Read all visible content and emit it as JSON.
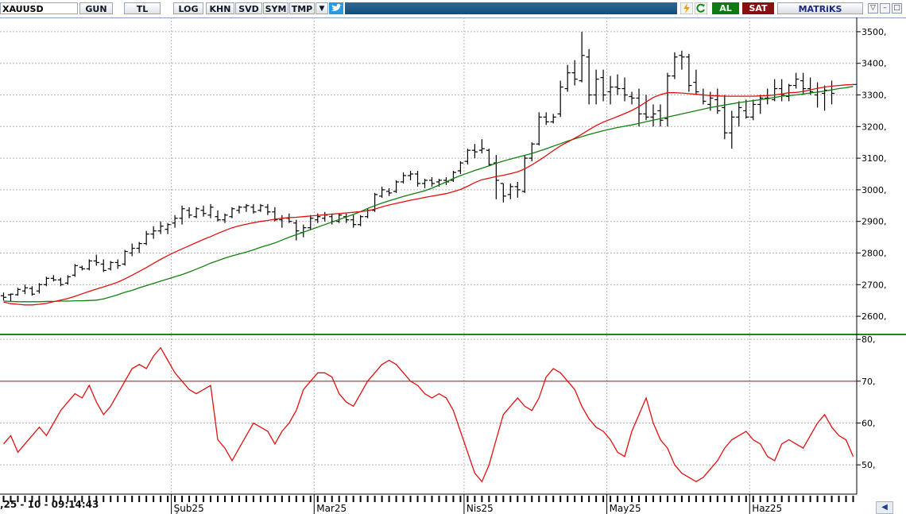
{
  "toolbar": {
    "symbol": "XAUUSD",
    "buttons": [
      {
        "label": "GUN"
      },
      {
        "label": "TL"
      },
      {
        "label": "LOG"
      },
      {
        "label": "KHN"
      },
      {
        "label": "SVD"
      },
      {
        "label": "SYM"
      },
      {
        "label": "TMP"
      }
    ],
    "buy_label": "AL",
    "sell_label": "SAT",
    "brand": "MATRiKS"
  },
  "footer": {
    "timestamp": ",25 - 10 - 09:14:43"
  },
  "colors": {
    "bars": "#000000",
    "ma_short": "#e01010",
    "ma_long": "#108010",
    "rsi": "#e01010",
    "rsi_ref_line": "#901818",
    "grid": "#b4b4b4",
    "last_segment": "#1a2a9a"
  },
  "chart_data": [
    {
      "type": "ohlc",
      "yticks": [
        "3500,",
        "3400,",
        "3300,",
        "3200,",
        "3100,",
        "3000,",
        "2900,",
        "2800,",
        "2700,",
        "2600,"
      ],
      "ytick_values": [
        3500,
        3400,
        3300,
        3200,
        3100,
        3000,
        2900,
        2800,
        2700,
        2600
      ],
      "ylim": [
        2550,
        3545
      ],
      "grid": true,
      "x_month_labels": [
        "Şub25",
        "Mar25",
        "Nis25",
        "May25",
        "Haz25"
      ],
      "x_month_index": [
        24,
        44,
        65,
        85,
        105
      ],
      "n_bars": 120,
      "bars": [
        [
          2665,
          2675,
          2650,
          2660
        ],
        [
          2668,
          2672,
          2648,
          2670
        ],
        [
          2668,
          2690,
          2665,
          2685
        ],
        [
          2680,
          2700,
          2670,
          2690
        ],
        [
          2688,
          2695,
          2665,
          2670
        ],
        [
          2680,
          2705,
          2672,
          2700
        ],
        [
          2700,
          2725,
          2695,
          2720
        ],
        [
          2720,
          2730,
          2710,
          2715
        ],
        [
          2715,
          2722,
          2695,
          2700
        ],
        [
          2705,
          2730,
          2700,
          2725
        ],
        [
          2730,
          2765,
          2725,
          2760
        ],
        [
          2755,
          2760,
          2745,
          2750
        ],
        [
          2750,
          2780,
          2745,
          2775
        ],
        [
          2775,
          2795,
          2760,
          2770
        ],
        [
          2765,
          2780,
          2740,
          2745
        ],
        [
          2750,
          2775,
          2745,
          2770
        ],
        [
          2770,
          2780,
          2750,
          2760
        ],
        [
          2765,
          2810,
          2760,
          2805
        ],
        [
          2800,
          2830,
          2790,
          2815
        ],
        [
          2815,
          2835,
          2800,
          2830
        ],
        [
          2830,
          2870,
          2825,
          2860
        ],
        [
          2860,
          2885,
          2845,
          2870
        ],
        [
          2870,
          2900,
          2860,
          2885
        ],
        [
          2875,
          2895,
          2860,
          2890
        ],
        [
          2895,
          2920,
          2880,
          2910
        ],
        [
          2910,
          2950,
          2890,
          2940
        ],
        [
          2935,
          2945,
          2910,
          2920
        ],
        [
          2915,
          2945,
          2910,
          2940
        ],
        [
          2935,
          2950,
          2915,
          2925
        ],
        [
          2920,
          2955,
          2910,
          2945
        ],
        [
          2915,
          2935,
          2900,
          2905
        ],
        [
          2905,
          2925,
          2895,
          2920
        ],
        [
          2915,
          2945,
          2910,
          2940
        ],
        [
          2935,
          2950,
          2925,
          2945
        ],
        [
          2945,
          2955,
          2930,
          2950
        ],
        [
          2945,
          2955,
          2925,
          2930
        ],
        [
          2935,
          2955,
          2930,
          2950
        ],
        [
          2945,
          2955,
          2920,
          2930
        ],
        [
          2930,
          2945,
          2900,
          2905
        ],
        [
          2905,
          2920,
          2880,
          2910
        ],
        [
          2910,
          2925,
          2895,
          2900
        ],
        [
          2895,
          2905,
          2840,
          2870
        ],
        [
          2865,
          2890,
          2850,
          2880
        ],
        [
          2880,
          2920,
          2875,
          2910
        ],
        [
          2905,
          2925,
          2895,
          2915
        ],
        [
          2910,
          2930,
          2900,
          2920
        ],
        [
          2915,
          2925,
          2890,
          2900
        ],
        [
          2900,
          2925,
          2895,
          2920
        ],
        [
          2915,
          2925,
          2895,
          2905
        ],
        [
          2905,
          2920,
          2880,
          2890
        ],
        [
          2890,
          2920,
          2885,
          2915
        ],
        [
          2915,
          2940,
          2910,
          2935
        ],
        [
          2935,
          2990,
          2930,
          2985
        ],
        [
          2980,
          3010,
          2975,
          3000
        ],
        [
          2995,
          3005,
          2980,
          2990
        ],
        [
          2995,
          3030,
          2990,
          3025
        ],
        [
          3025,
          3055,
          3020,
          3045
        ],
        [
          3045,
          3060,
          3030,
          3050
        ],
        [
          3050,
          3060,
          3010,
          3020
        ],
        [
          3020,
          3035,
          3005,
          3030
        ],
        [
          3030,
          3040,
          3010,
          3020
        ],
        [
          3025,
          3035,
          3010,
          3030
        ],
        [
          3030,
          3040,
          3015,
          3025
        ],
        [
          3030,
          3060,
          3025,
          3055
        ],
        [
          3060,
          3090,
          3050,
          3085
        ],
        [
          3090,
          3130,
          3080,
          3125
        ],
        [
          3125,
          3145,
          3100,
          3120
        ],
        [
          3125,
          3160,
          3115,
          3130
        ],
        [
          3125,
          3130,
          3075,
          3080
        ],
        [
          3085,
          3110,
          2970,
          3030
        ],
        [
          3020,
          3020,
          2960,
          2980
        ],
        [
          2985,
          3020,
          2970,
          3010
        ],
        [
          3010,
          3025,
          2975,
          3000
        ],
        [
          2995,
          3110,
          2990,
          3100
        ],
        [
          3100,
          3150,
          3090,
          3145
        ],
        [
          3145,
          3245,
          3140,
          3230
        ],
        [
          3230,
          3245,
          3205,
          3215
        ],
        [
          3215,
          3240,
          3210,
          3230
        ],
        [
          3240,
          3345,
          3230,
          3325
        ],
        [
          3320,
          3395,
          3310,
          3370
        ],
        [
          3370,
          3410,
          3330,
          3350
        ],
        [
          3345,
          3500,
          3340,
          3425
        ],
        [
          3420,
          3445,
          3270,
          3300
        ],
        [
          3300,
          3380,
          3270,
          3350
        ],
        [
          3355,
          3380,
          3280,
          3300
        ],
        [
          3310,
          3360,
          3270,
          3325
        ],
        [
          3325,
          3365,
          3300,
          3320
        ],
        [
          3320,
          3355,
          3280,
          3300
        ],
        [
          3295,
          3310,
          3270,
          3290
        ],
        [
          3290,
          3320,
          3200,
          3240
        ],
        [
          3240,
          3300,
          3220,
          3230
        ],
        [
          3230,
          3270,
          3200,
          3240
        ],
        [
          3250,
          3270,
          3200,
          3220
        ],
        [
          3225,
          3370,
          3200,
          3360
        ],
        [
          3360,
          3435,
          3350,
          3420
        ],
        [
          3425,
          3440,
          3380,
          3420
        ],
        [
          3420,
          3430,
          3310,
          3330
        ],
        [
          3340,
          3380,
          3300,
          3310
        ],
        [
          3300,
          3320,
          3270,
          3280
        ],
        [
          3270,
          3310,
          3250,
          3290
        ],
        [
          3285,
          3320,
          3240,
          3250
        ],
        [
          3260,
          3300,
          3160,
          3180
        ],
        [
          3180,
          3250,
          3130,
          3230
        ],
        [
          3230,
          3280,
          3200,
          3260
        ],
        [
          3250,
          3285,
          3225,
          3230
        ],
        [
          3230,
          3285,
          3220,
          3270
        ],
        [
          3270,
          3300,
          3240,
          3290
        ],
        [
          3290,
          3320,
          3270,
          3290
        ],
        [
          3285,
          3350,
          3280,
          3320
        ],
        [
          3320,
          3350,
          3280,
          3300
        ],
        [
          3295,
          3335,
          3280,
          3330
        ],
        [
          3330,
          3370,
          3320,
          3350
        ],
        [
          3345,
          3370,
          3300,
          3320
        ],
        [
          3320,
          3355,
          3300,
          3310
        ],
        [
          3300,
          3340,
          3260,
          3310
        ],
        [
          3305,
          3330,
          3250,
          3315
        ],
        [
          3315,
          3345,
          3270,
          3305
        ]
      ],
      "ma_short": [
        2645,
        2640,
        2638,
        2636,
        2636,
        2638,
        2641,
        2646,
        2651,
        2656,
        2663,
        2671,
        2679,
        2686,
        2693,
        2700,
        2708,
        2718,
        2730,
        2742,
        2754,
        2767,
        2780,
        2792,
        2803,
        2813,
        2823,
        2833,
        2843,
        2852,
        2862,
        2871,
        2880,
        2886,
        2891,
        2896,
        2900,
        2903,
        2907,
        2910,
        2912,
        2913,
        2915,
        2917,
        2919,
        2921,
        2923,
        2925,
        2927,
        2929,
        2931,
        2934,
        2939,
        2946,
        2952,
        2957,
        2962,
        2967,
        2971,
        2976,
        2980,
        2984,
        2988,
        2994,
        3001,
        3011,
        3023,
        3032,
        3037,
        3042,
        3046,
        3051,
        3057,
        3066,
        3079,
        3093,
        3108,
        3124,
        3139,
        3151,
        3163,
        3176,
        3190,
        3203,
        3214,
        3223,
        3232,
        3241,
        3251,
        3263,
        3278,
        3292,
        3301,
        3307,
        3307,
        3306,
        3304,
        3302,
        3300,
        3298,
        3297,
        3296,
        3296,
        3296,
        3296,
        3296,
        3297,
        3298,
        3300,
        3303,
        3307,
        3308,
        3311,
        3316,
        3321,
        3325,
        3328,
        3330,
        3332,
        3333
      ],
      "ma_long": [
        2648,
        2647,
        2646,
        2646,
        2646,
        2646,
        2647,
        2647,
        2648,
        2648,
        2649,
        2649,
        2650,
        2651,
        2655,
        2661,
        2668,
        2676,
        2682,
        2690,
        2697,
        2704,
        2711,
        2718,
        2725,
        2732,
        2740,
        2749,
        2758,
        2768,
        2776,
        2784,
        2791,
        2797,
        2803,
        2810,
        2818,
        2825,
        2832,
        2841,
        2850,
        2858,
        2866,
        2874,
        2882,
        2890,
        2898,
        2906,
        2914,
        2922,
        2931,
        2941,
        2950,
        2958,
        2965,
        2972,
        2979,
        2985,
        2991,
        2997,
        3005,
        3015,
        3025,
        3036,
        3045,
        3053,
        3061,
        3068,
        3076,
        3084,
        3091,
        3097,
        3103,
        3109,
        3115,
        3122,
        3130,
        3138,
        3146,
        3154,
        3161,
        3168,
        3175,
        3181,
        3187,
        3192,
        3197,
        3201,
        3205,
        3210,
        3215,
        3220,
        3225,
        3230,
        3235,
        3240,
        3245,
        3250,
        3255,
        3260,
        3264,
        3268,
        3272,
        3276,
        3279,
        3282,
        3285,
        3288,
        3292,
        3296,
        3298,
        3300,
        3303,
        3306,
        3309,
        3312,
        3316,
        3320,
        3323,
        3327
      ]
    },
    {
      "type": "line",
      "yticks": [
        "80,",
        "70,",
        "60,",
        "50,"
      ],
      "ytick_values": [
        80,
        70,
        60,
        50
      ],
      "ylim": [
        43,
        80.6
      ],
      "ref_line": 70,
      "grid": true,
      "series": [
        {
          "values": [
            55,
            57,
            53,
            55,
            57,
            59,
            57,
            60,
            63,
            65,
            67,
            66,
            69,
            65,
            62,
            64,
            67,
            70,
            73,
            74,
            73,
            76,
            78,
            75,
            72,
            70,
            68,
            67,
            68,
            69,
            56,
            54,
            51,
            54,
            57,
            60,
            59,
            58,
            55,
            58,
            60,
            63,
            68,
            70,
            72,
            72,
            71,
            67,
            65,
            64,
            67,
            70,
            72,
            74,
            75,
            74,
            72,
            70,
            69,
            67,
            66,
            67,
            66,
            63,
            58,
            53,
            48,
            46,
            50,
            56,
            62,
            64,
            66,
            64,
            63,
            66,
            71,
            73,
            72,
            70,
            68,
            64,
            61,
            59,
            58,
            56,
            53,
            52,
            58,
            62,
            66,
            60,
            56,
            54,
            50,
            48,
            47,
            46,
            47,
            49,
            51,
            54,
            56,
            57,
            58,
            56,
            55,
            52,
            51,
            55,
            56,
            55,
            54,
            57,
            60,
            62,
            59,
            57,
            56,
            52
          ]
        }
      ]
    }
  ]
}
